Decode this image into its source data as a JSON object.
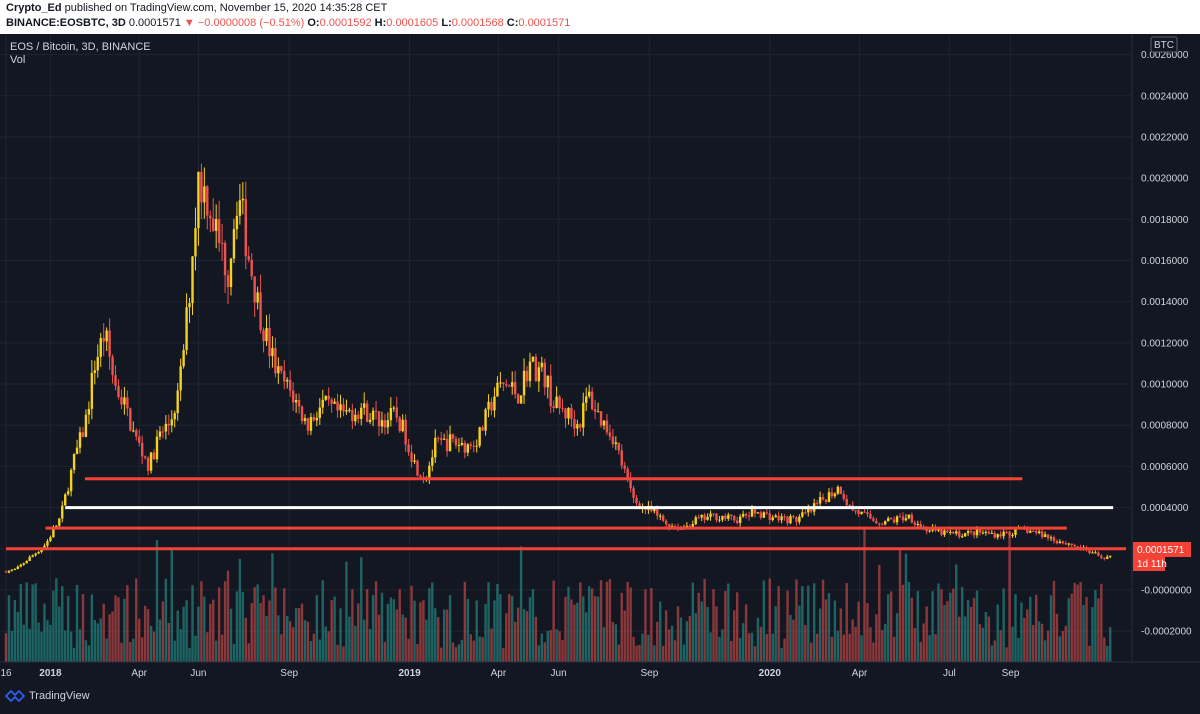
{
  "header": {
    "author": "Crypto_Ed",
    "published_text": " published on TradingView.com, November 15, 2020 14:35:28 CET",
    "symbol_interval": "BINANCE:EOSBTC, 3D",
    "last": "0.0001571",
    "change_arrow": "▼",
    "change": "−0.0000008 (−0.51%)",
    "open_label": "O:",
    "open": "0.0001592",
    "high_label": "H:",
    "high": "0.0001605",
    "low_label": "L:",
    "low": "0.0001568",
    "close_label": "C:",
    "close": "0.0001571"
  },
  "legend": {
    "title": "EOS / Bitcoin, 3D, BINANCE",
    "indicator": "Vol"
  },
  "currency_badge": "BTC",
  "price_label": "0.0001571",
  "countdown_label": "1d 11h",
  "footer": {
    "brand": "TradingView"
  },
  "colors": {
    "background": "#131722",
    "up": "#f5d21f",
    "down": "#ef5350",
    "vol_up": "#26a69a",
    "vol_down": "#ef5350",
    "support_red": "#f44336",
    "support_white": "#ffffff",
    "grid": "#1f2430",
    "axis_text": "#d1d4dc"
  },
  "chart_data": {
    "type": "candlestick",
    "title": "EOS / Bitcoin, 3D, BINANCE",
    "ylim": [
      -0.00035,
      0.0027
    ],
    "y_ticks": [
      "0.0026000",
      "0.0024000",
      "0.0022000",
      "0.0020000",
      "0.0018000",
      "0.0016000",
      "0.0014000",
      "0.0012000",
      "0.0010000",
      "0.0008000",
      "0.0006000",
      "0.0004000",
      "0.0002000",
      "-0.0000000",
      "-0.0002000"
    ],
    "x_ticks": [
      {
        "label": "16",
        "t": 0
      },
      {
        "label": "2018",
        "t": 45
      },
      {
        "label": "Apr",
        "t": 135
      },
      {
        "label": "Jun",
        "t": 195
      },
      {
        "label": "Sep",
        "t": 287
      },
      {
        "label": "2019",
        "t": 409
      },
      {
        "label": "Apr",
        "t": 499
      },
      {
        "label": "Jun",
        "t": 560
      },
      {
        "label": "Sep",
        "t": 652
      },
      {
        "label": "2020",
        "t": 774
      },
      {
        "label": "Apr",
        "t": 865
      },
      {
        "label": "Jul",
        "t": 956
      },
      {
        "label": "Sep",
        "t": 1018
      }
    ],
    "t_range": [
      0,
      1135
    ],
    "price_path": [
      [
        0,
        9e-05
      ],
      [
        10,
        0.0001
      ],
      [
        25,
        0.00016
      ],
      [
        40,
        0.00022
      ],
      [
        55,
        0.00035
      ],
      [
        70,
        0.00065
      ],
      [
        80,
        0.0008
      ],
      [
        90,
        0.0011
      ],
      [
        100,
        0.00125
      ],
      [
        110,
        0.001
      ],
      [
        120,
        0.0009
      ],
      [
        130,
        0.00075
      ],
      [
        145,
        0.0006
      ],
      [
        155,
        0.00075
      ],
      [
        165,
        0.0008
      ],
      [
        175,
        0.00095
      ],
      [
        185,
        0.0014
      ],
      [
        195,
        0.002
      ],
      [
        205,
        0.0019
      ],
      [
        215,
        0.0017
      ],
      [
        225,
        0.00155
      ],
      [
        235,
        0.00195
      ],
      [
        245,
        0.00165
      ],
      [
        255,
        0.0014
      ],
      [
        265,
        0.0012
      ],
      [
        275,
        0.00105
      ],
      [
        290,
        0.00095
      ],
      [
        305,
        0.0008
      ],
      [
        320,
        0.0009
      ],
      [
        340,
        0.00085
      ],
      [
        360,
        0.00088
      ],
      [
        380,
        0.00082
      ],
      [
        395,
        0.00085
      ],
      [
        405,
        0.00075
      ],
      [
        415,
        0.0006
      ],
      [
        425,
        0.00055
      ],
      [
        435,
        0.0007
      ],
      [
        450,
        0.00072
      ],
      [
        470,
        0.0007
      ],
      [
        480,
        0.00075
      ],
      [
        495,
        0.00095
      ],
      [
        505,
        0.001
      ],
      [
        520,
        0.00095
      ],
      [
        530,
        0.0011
      ],
      [
        545,
        0.00105
      ],
      [
        555,
        0.0009
      ],
      [
        570,
        0.00085
      ],
      [
        580,
        0.0008
      ],
      [
        590,
        0.00095
      ],
      [
        600,
        0.00085
      ],
      [
        615,
        0.00075
      ],
      [
        625,
        0.0006
      ],
      [
        635,
        0.00045
      ],
      [
        645,
        0.0004
      ],
      [
        655,
        0.00038
      ],
      [
        670,
        0.00032
      ],
      [
        685,
        0.0003
      ],
      [
        700,
        0.00034
      ],
      [
        720,
        0.00036
      ],
      [
        740,
        0.00034
      ],
      [
        760,
        0.00038
      ],
      [
        780,
        0.00035
      ],
      [
        800,
        0.00034
      ],
      [
        815,
        0.00038
      ],
      [
        830,
        0.00045
      ],
      [
        845,
        0.0005
      ],
      [
        855,
        0.0004
      ],
      [
        870,
        0.00036
      ],
      [
        885,
        0.00033
      ],
      [
        900,
        0.00034
      ],
      [
        915,
        0.00036
      ],
      [
        930,
        0.0003
      ],
      [
        945,
        0.00028
      ],
      [
        965,
        0.00027
      ],
      [
        985,
        0.00028
      ],
      [
        1005,
        0.00027
      ],
      [
        1020,
        0.00028
      ],
      [
        1035,
        0.00029
      ],
      [
        1050,
        0.00027
      ],
      [
        1065,
        0.00024
      ],
      [
        1080,
        0.00022
      ],
      [
        1095,
        0.00019
      ],
      [
        1110,
        0.00016
      ],
      [
        1120,
        0.0001571
      ]
    ],
    "horizontal_levels": [
      {
        "price": 0.00054,
        "t_start": 80,
        "t_end": 1030,
        "color": "#f44336"
      },
      {
        "price": 0.0004,
        "t_start": 60,
        "t_end": 1122,
        "color": "#ffffff"
      },
      {
        "price": 0.0003,
        "t_start": 40,
        "t_end": 1075,
        "color": "#f44336"
      },
      {
        "price": 0.0002,
        "t_start": 0,
        "t_end": 1135,
        "color": "#f44336"
      }
    ]
  }
}
